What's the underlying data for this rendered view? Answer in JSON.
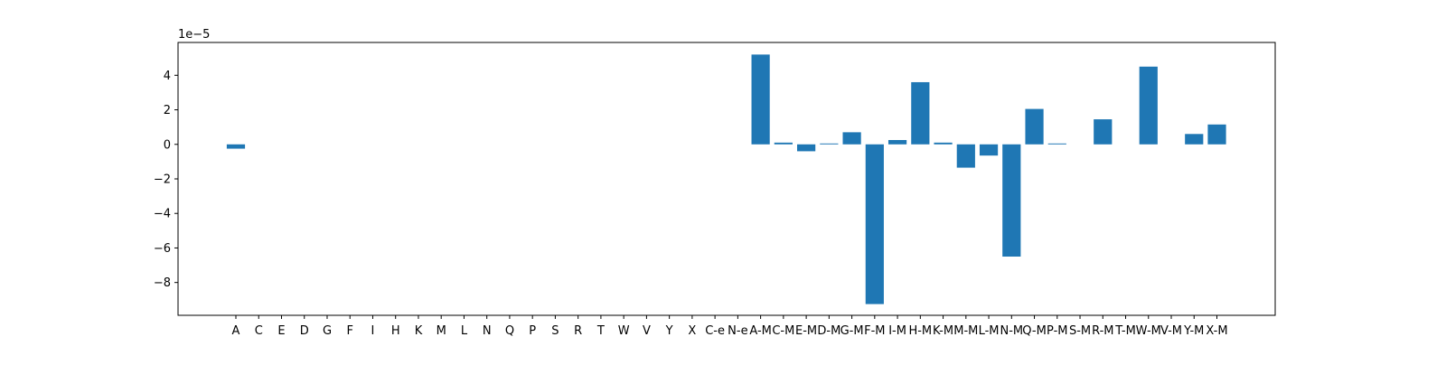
{
  "chart_data": {
    "type": "bar",
    "title": "",
    "xlabel": "",
    "ylabel": "",
    "offset_label": "1e−5",
    "categories": [
      "A",
      "C",
      "E",
      "D",
      "G",
      "F",
      "I",
      "H",
      "K",
      "M",
      "L",
      "N",
      "Q",
      "P",
      "S",
      "R",
      "T",
      "W",
      "V",
      "Y",
      "X",
      "C-e",
      "N-e",
      "A-M",
      "C-M",
      "E-M",
      "D-M",
      "G-M",
      "F-M",
      "I-M",
      "H-M",
      "K-M",
      "M-M",
      "L-M",
      "N-M",
      "Q-M",
      "P-M",
      "S-M",
      "R-M",
      "T-M",
      "W-M",
      "V-M",
      "Y-M",
      "X-M"
    ],
    "values": [
      -2.5e-06,
      0,
      0,
      0,
      0,
      0,
      0,
      0,
      0,
      0,
      0,
      0,
      0,
      0,
      0,
      0,
      0,
      0,
      0,
      0,
      0,
      0,
      0,
      5.2e-05,
      1e-06,
      -4e-06,
      5e-07,
      7e-06,
      -9.25e-05,
      2.5e-06,
      3.6e-05,
      1e-06,
      -1.35e-05,
      -6.5e-06,
      -6.5e-05,
      2.05e-05,
      5e-07,
      0,
      1.45e-05,
      0,
      4.5e-05,
      0,
      6e-06,
      1.15e-05
    ],
    "ylim": [
      -9.9e-05,
      5.9e-05
    ],
    "yticks": [
      4e-05,
      2e-05,
      0,
      -2e-05,
      -4e-05,
      -6e-05,
      -8e-05
    ],
    "ytick_labels": [
      "4",
      "2",
      "0",
      "−2",
      "−4",
      "−6",
      "−8"
    ],
    "bar_color": "#1f77b4",
    "grid": false,
    "legend": "none"
  }
}
